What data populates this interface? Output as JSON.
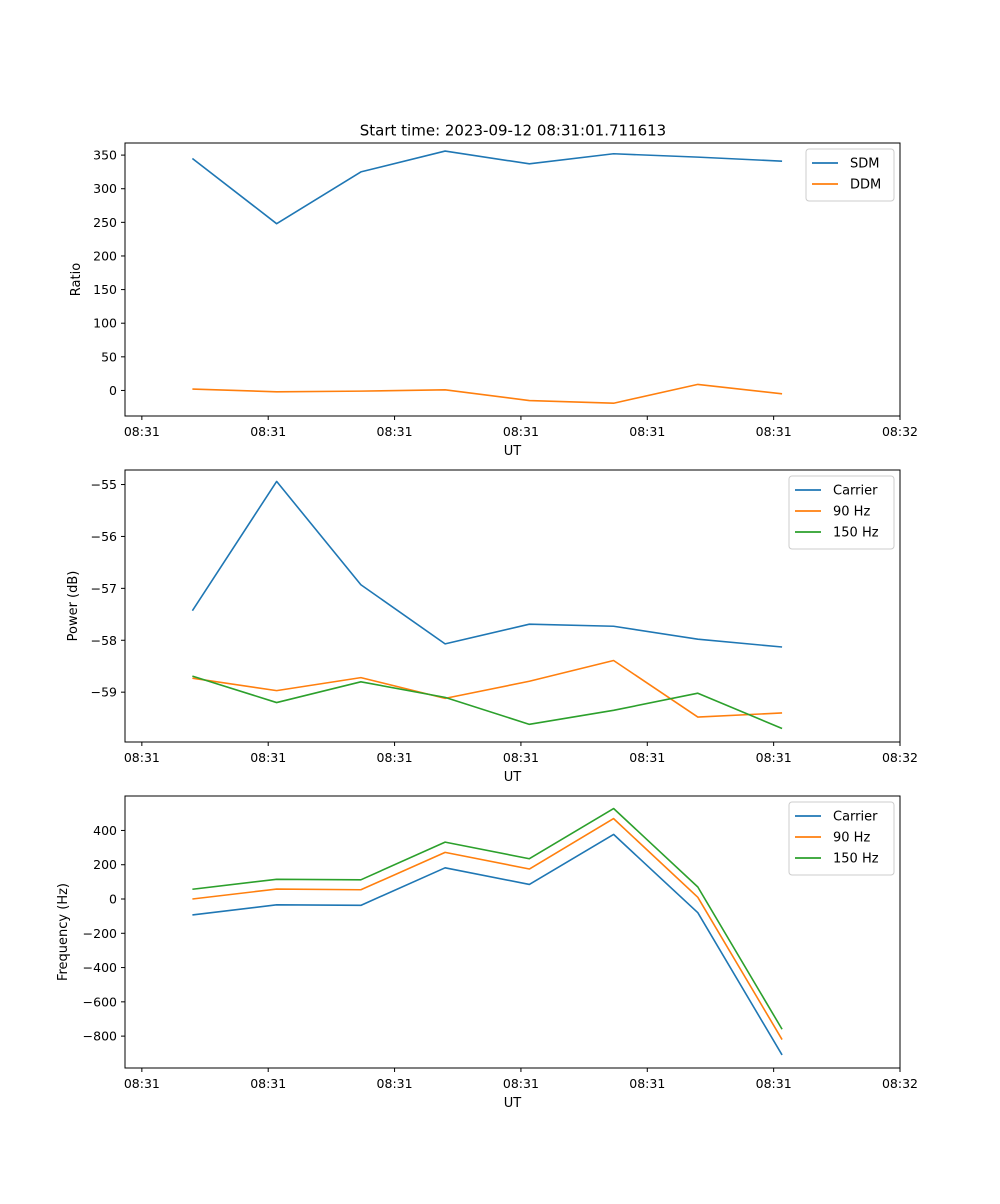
{
  "figure_title": "Start time: 2023-09-12 08:31:01.711613",
  "chart_data": [
    {
      "type": "line",
      "title": "Start time: 2023-09-12 08:31:01.711613",
      "xlabel": "UT",
      "ylabel": "Ratio",
      "x": [
        1,
        2,
        3,
        4,
        5,
        6,
        7,
        8
      ],
      "xlim": [
        0.2,
        9.4
      ],
      "xticks": [
        0.4,
        1.9,
        3.4,
        4.9,
        6.4,
        7.9,
        9.4
      ],
      "xtick_labels": [
        "08:31",
        "08:31",
        "08:31",
        "08:31",
        "08:31",
        "08:31",
        "08:32"
      ],
      "ylim": [
        -38,
        368
      ],
      "yticks": [
        0,
        50,
        100,
        150,
        200,
        250,
        300,
        350
      ],
      "ytick_labels": [
        "0",
        "50",
        "100",
        "150",
        "200",
        "250",
        "300",
        "350"
      ],
      "legend": "top-right",
      "series": [
        {
          "name": "SDM",
          "color": "#1f77b4",
          "values": [
            345,
            248,
            325,
            356,
            337,
            352,
            347,
            341
          ]
        },
        {
          "name": "DDM",
          "color": "#ff7f0e",
          "values": [
            2,
            -2,
            -1,
            1,
            -15,
            -19,
            9,
            -5
          ]
        }
      ]
    },
    {
      "type": "line",
      "title": "",
      "xlabel": "UT",
      "ylabel": "Power (dB)",
      "x": [
        1,
        2,
        3,
        4,
        5,
        6,
        7,
        8
      ],
      "xlim": [
        0.2,
        9.4
      ],
      "xticks": [
        0.4,
        1.9,
        3.4,
        4.9,
        6.4,
        7.9,
        9.4
      ],
      "xtick_labels": [
        "08:31",
        "08:31",
        "08:31",
        "08:31",
        "08:31",
        "08:31",
        "08:32"
      ],
      "ylim": [
        -59.96,
        -54.72
      ],
      "yticks": [
        -55,
        -56,
        -57,
        -58,
        -59
      ],
      "ytick_labels": [
        "−55",
        "−56",
        "−57",
        "−58",
        "−59"
      ],
      "legend": "top-right",
      "series": [
        {
          "name": "Carrier",
          "color": "#1f77b4",
          "values": [
            -57.43,
            -54.94,
            -56.93,
            -58.07,
            -57.69,
            -57.73,
            -57.98,
            -58.13
          ]
        },
        {
          "name": "90 Hz",
          "color": "#ff7f0e",
          "values": [
            -58.73,
            -58.97,
            -58.72,
            -59.12,
            -58.79,
            -58.39,
            -59.48,
            -59.4
          ]
        },
        {
          "name": "150 Hz",
          "color": "#2ca02c",
          "values": [
            -58.69,
            -59.2,
            -58.8,
            -59.1,
            -59.62,
            -59.35,
            -59.02,
            -59.7
          ]
        }
      ]
    },
    {
      "type": "line",
      "title": "",
      "xlabel": "UT",
      "ylabel": "Frequency (Hz)",
      "x": [
        1,
        2,
        3,
        4,
        5,
        6,
        7,
        8
      ],
      "xlim": [
        0.2,
        9.4
      ],
      "xticks": [
        0.4,
        1.9,
        3.4,
        4.9,
        6.4,
        7.9,
        9.4
      ],
      "xtick_labels": [
        "08:31",
        "08:31",
        "08:31",
        "08:31",
        "08:31",
        "08:31",
        "08:32"
      ],
      "ylim": [
        -986,
        601
      ],
      "yticks": [
        400,
        200,
        0,
        -200,
        -400,
        -600,
        -800
      ],
      "ytick_labels": [
        "400",
        "200",
        "0",
        "−200",
        "−400",
        "−600",
        "−800"
      ],
      "legend": "top-right",
      "series": [
        {
          "name": "Carrier",
          "color": "#1f77b4",
          "values": [
            -93,
            -34,
            -37,
            182,
            85,
            377,
            -80,
            -910
          ]
        },
        {
          "name": "90 Hz",
          "color": "#ff7f0e",
          "values": [
            0,
            58,
            54,
            272,
            175,
            469,
            10,
            -820
          ]
        },
        {
          "name": "150 Hz",
          "color": "#2ca02c",
          "values": [
            57,
            115,
            112,
            332,
            235,
            528,
            70,
            -760
          ]
        }
      ]
    }
  ]
}
